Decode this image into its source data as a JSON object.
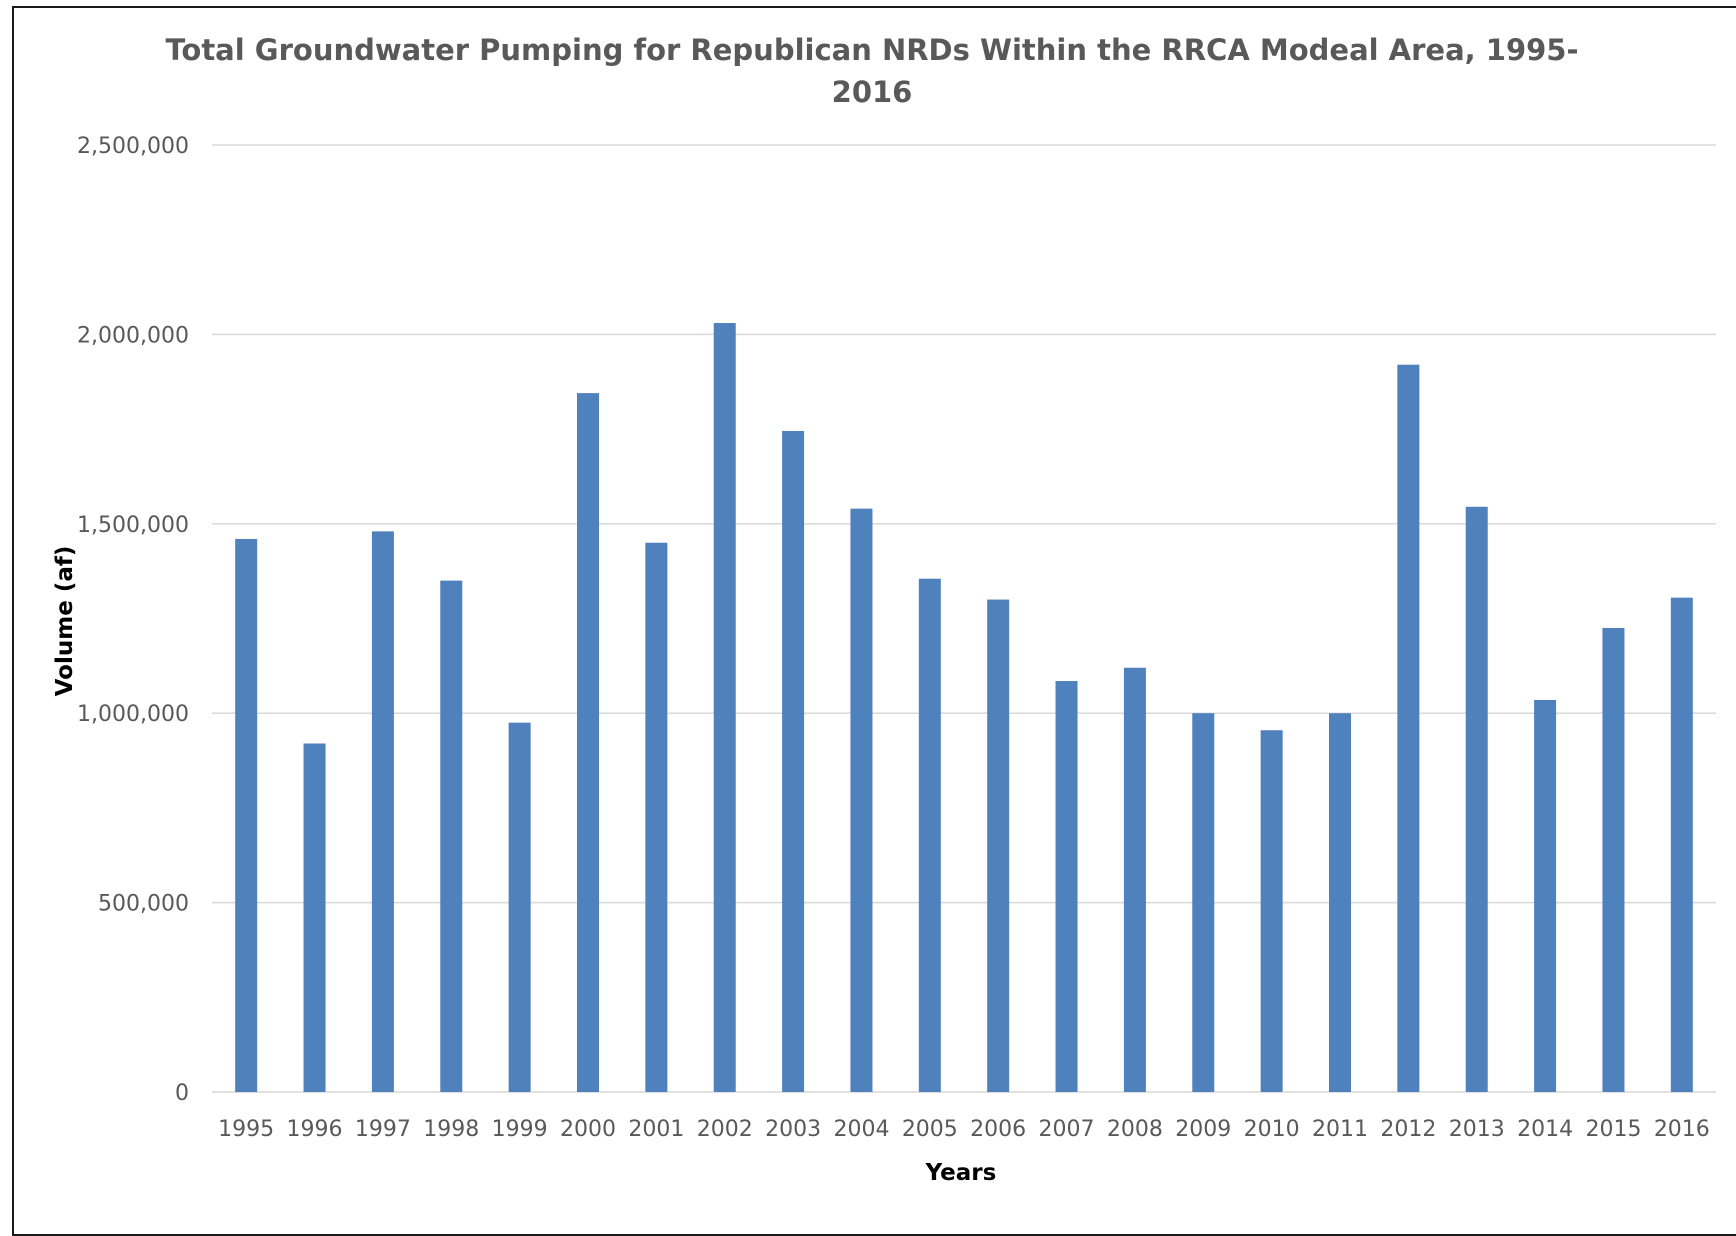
{
  "chart_data": {
    "type": "bar",
    "title": "Total Groundwater Pumping for Republican NRDs Within the RRCA Modeal Area, 1995-2016",
    "title_lines": [
      "Total Groundwater Pumping for Republican NRDs Within the RRCA Modeal Area, 1995-",
      "2016"
    ],
    "xlabel": "Years",
    "ylabel": "Volume (af)",
    "ylim": [
      0,
      2500000
    ],
    "yticks": [
      0,
      500000,
      1000000,
      1500000,
      2000000,
      2500000
    ],
    "ytick_labels": [
      "0",
      "500,000",
      "1,000,000",
      "1,500,000",
      "2,000,000",
      "2,500,000"
    ],
    "grid": true,
    "legend": "none",
    "bar_color": "#4f81bd",
    "categories": [
      "1995",
      "1996",
      "1997",
      "1998",
      "1999",
      "2000",
      "2001",
      "2002",
      "2003",
      "2004",
      "2005",
      "2006",
      "2007",
      "2008",
      "2009",
      "2010",
      "2011",
      "2012",
      "2013",
      "2014",
      "2015",
      "2016"
    ],
    "values": [
      1460000,
      920000,
      1480000,
      1350000,
      975000,
      1845000,
      1450000,
      2030000,
      1745000,
      1540000,
      1355000,
      1300000,
      1085000,
      1120000,
      1000000,
      955000,
      1000000,
      1920000,
      1545000,
      1035000,
      1225000,
      1305000
    ]
  }
}
